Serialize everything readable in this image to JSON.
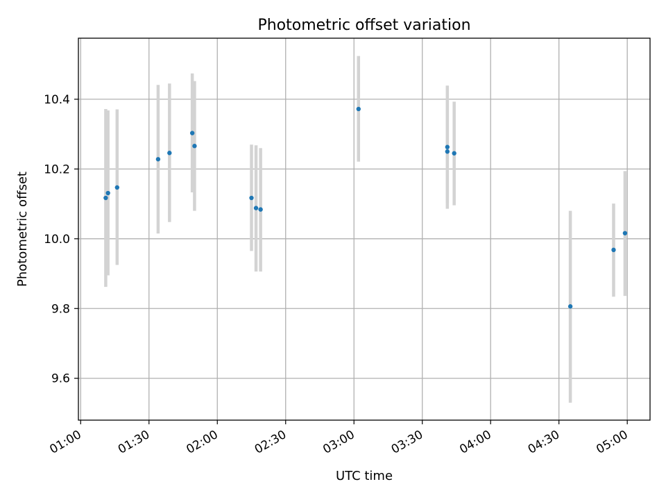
{
  "chart_data": {
    "type": "scatter",
    "title": "Photometric offset variation",
    "xlabel": "UTC time",
    "ylabel": "Photometric offset",
    "grid": true,
    "x_unit": "UTC time (HH:MM)",
    "xlim": [
      "00:59",
      "05:10"
    ],
    "ylim": [
      9.48,
      10.575
    ],
    "x_ticks": [
      "01:00",
      "01:30",
      "02:00",
      "02:30",
      "03:00",
      "03:30",
      "04:00",
      "04:30",
      "05:00"
    ],
    "y_ticks": [
      "9.6",
      "9.8",
      "10.0",
      "10.2",
      "10.4"
    ],
    "colors": {
      "points": "#1f77b4",
      "errorbars": "#d3d3d3",
      "grid": "#b0b0b0"
    },
    "points": [
      {
        "x": "01:11",
        "y": 10.117,
        "err_low": 9.862,
        "err_high": 10.372
      },
      {
        "x": "01:12",
        "y": 10.131,
        "err_low": 9.895,
        "err_high": 10.368
      },
      {
        "x": "01:16",
        "y": 10.147,
        "err_low": 9.925,
        "err_high": 10.371
      },
      {
        "x": "01:34",
        "y": 10.228,
        "err_low": 10.015,
        "err_high": 10.441
      },
      {
        "x": "01:39",
        "y": 10.246,
        "err_low": 10.048,
        "err_high": 10.445
      },
      {
        "x": "01:49",
        "y": 10.303,
        "err_low": 10.133,
        "err_high": 10.474
      },
      {
        "x": "01:50",
        "y": 10.266,
        "err_low": 10.08,
        "err_high": 10.452
      },
      {
        "x": "02:15",
        "y": 10.117,
        "err_low": 9.965,
        "err_high": 10.27
      },
      {
        "x": "02:17",
        "y": 10.088,
        "err_low": 9.906,
        "err_high": 10.268
      },
      {
        "x": "02:19",
        "y": 10.084,
        "err_low": 9.906,
        "err_high": 10.26
      },
      {
        "x": "03:02",
        "y": 10.372,
        "err_low": 10.221,
        "err_high": 10.524
      },
      {
        "x": "03:41",
        "y": 10.263,
        "err_low": 10.086,
        "err_high": 10.439
      },
      {
        "x": "03:41",
        "y": 10.25,
        "err_low": 10.104,
        "err_high": 10.395
      },
      {
        "x": "03:44",
        "y": 10.245,
        "err_low": 10.096,
        "err_high": 10.393
      },
      {
        "x": "04:35",
        "y": 9.806,
        "err_low": 9.53,
        "err_high": 10.08
      },
      {
        "x": "04:54",
        "y": 9.968,
        "err_low": 9.834,
        "err_high": 10.101
      },
      {
        "x": "04:59",
        "y": 10.016,
        "err_low": 9.836,
        "err_high": 10.194
      }
    ]
  }
}
